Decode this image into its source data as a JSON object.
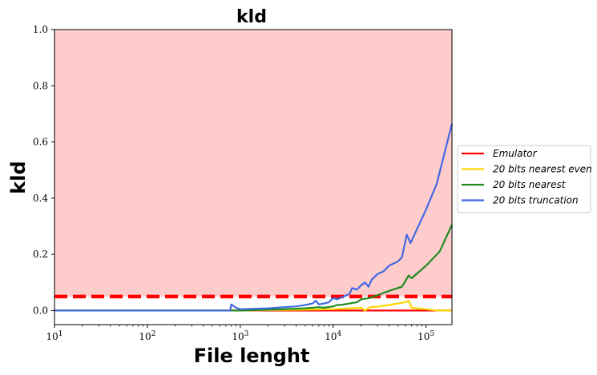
{
  "colors": {
    "band": "#ffcccc",
    "threshold": "#ff0000",
    "axis": "#000000"
  },
  "chart_data": {
    "type": "line",
    "title": "kld",
    "xlabel": "File lenght",
    "ylabel": "kld",
    "xscale": "log",
    "xlim": [
      10,
      190000
    ],
    "ylim": [
      -0.05,
      1.0
    ],
    "grid": false,
    "legend_position": "right, outside plot area",
    "x_ticks": [
      {
        "value": 10,
        "base": "10",
        "exp": "1"
      },
      {
        "value": 100,
        "base": "10",
        "exp": "2"
      },
      {
        "value": 1000,
        "base": "10",
        "exp": "3"
      },
      {
        "value": 10000,
        "base": "10",
        "exp": "4"
      },
      {
        "value": 100000,
        "base": "10",
        "exp": "5"
      }
    ],
    "y_ticks": [
      {
        "value": 0.0,
        "label": "0.0"
      },
      {
        "value": 0.2,
        "label": "0.2"
      },
      {
        "value": 0.4,
        "label": "0.4"
      },
      {
        "value": 0.6,
        "label": "0.6"
      },
      {
        "value": 0.8,
        "label": "0.8"
      },
      {
        "value": 1.0,
        "label": "1.0"
      }
    ],
    "shaded_region": {
      "y0": 0.05,
      "y1": 1.0,
      "color": "#ffcccc"
    },
    "threshold_line": {
      "y": 0.05,
      "color": "#ff0000",
      "style": "dashed"
    },
    "series": [
      {
        "name": "Emulator",
        "color": "#ff0000",
        "x": [
          10,
          800,
          1000,
          10000,
          30000,
          60000,
          100000,
          190000
        ],
        "y": [
          0.0,
          0.0,
          0.0,
          0.0,
          0.0,
          0.0,
          0.0,
          0.0
        ]
      },
      {
        "name": "20 bits nearest even",
        "color": "#ffd700",
        "x": [
          10,
          800,
          1000,
          3000,
          10000,
          15000,
          20000,
          22000,
          25000,
          30000,
          40000,
          50000,
          60000,
          65000,
          70000,
          100000,
          130000,
          190000
        ],
        "y": [
          0.0,
          0.0,
          0.0,
          0.002,
          0.005,
          0.008,
          0.01,
          0.0,
          0.012,
          0.014,
          0.02,
          0.025,
          0.03,
          0.035,
          0.01,
          0.005,
          0.0,
          0.0
        ]
      },
      {
        "name": "20 bits nearest",
        "color": "#228b22",
        "x": [
          10,
          800,
          1000,
          2000,
          3000,
          5000,
          7000,
          8000,
          10000,
          11000,
          12000,
          15000,
          18000,
          20000,
          25000,
          30000,
          40000,
          55000,
          65000,
          70000,
          100000,
          140000,
          190000
        ],
        "y": [
          0.0,
          0.0,
          0.0,
          0.003,
          0.005,
          0.008,
          0.012,
          0.01,
          0.015,
          0.02,
          0.02,
          0.025,
          0.03,
          0.04,
          0.045,
          0.055,
          0.07,
          0.085,
          0.125,
          0.115,
          0.16,
          0.21,
          0.305
        ]
      },
      {
        "name": "20 bits truncation",
        "color": "#4169e1",
        "x": [
          10,
          780,
          800,
          900,
          1000,
          2000,
          3000,
          4000,
          5000,
          6000,
          6500,
          7000,
          8000,
          9000,
          10000,
          11000,
          13000,
          15000,
          16000,
          18000,
          20000,
          22000,
          24000,
          26000,
          30000,
          35000,
          40000,
          50000,
          55000,
          62000,
          68000,
          100000,
          130000,
          190000
        ],
        "y": [
          0.0,
          0.0,
          0.022,
          0.01,
          0.005,
          0.008,
          0.012,
          0.015,
          0.02,
          0.025,
          0.035,
          0.022,
          0.025,
          0.03,
          0.045,
          0.04,
          0.05,
          0.06,
          0.08,
          0.075,
          0.09,
          0.1,
          0.085,
          0.11,
          0.13,
          0.14,
          0.16,
          0.175,
          0.19,
          0.27,
          0.24,
          0.36,
          0.45,
          0.665
        ]
      }
    ]
  }
}
